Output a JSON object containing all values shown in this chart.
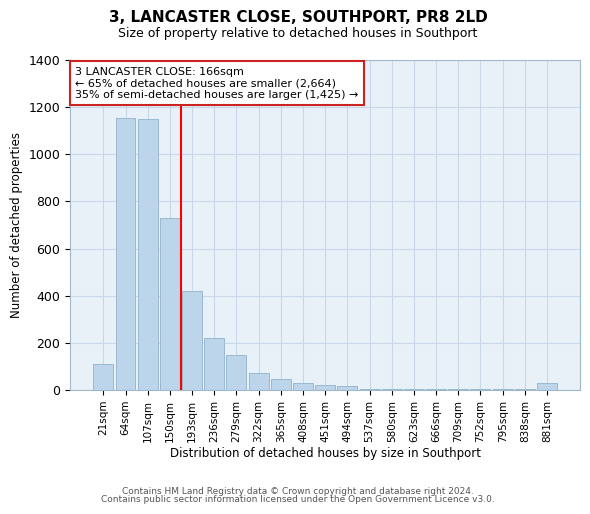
{
  "title": "3, LANCASTER CLOSE, SOUTHPORT, PR8 2LD",
  "subtitle": "Size of property relative to detached houses in Southport",
  "xlabel": "Distribution of detached houses by size in Southport",
  "ylabel": "Number of detached properties",
  "bar_labels": [
    "21sqm",
    "64sqm",
    "107sqm",
    "150sqm",
    "193sqm",
    "236sqm",
    "279sqm",
    "322sqm",
    "365sqm",
    "408sqm",
    "451sqm",
    "494sqm",
    "537sqm",
    "580sqm",
    "623sqm",
    "666sqm",
    "709sqm",
    "752sqm",
    "795sqm",
    "838sqm",
    "881sqm"
  ],
  "bar_values": [
    110,
    1155,
    1150,
    730,
    420,
    220,
    150,
    72,
    48,
    30,
    20,
    15,
    5,
    5,
    5,
    5,
    5,
    5,
    5,
    5,
    30
  ],
  "bar_color": "#bdd5ea",
  "red_line_x": 3.5,
  "ylim": [
    0,
    1400
  ],
  "yticks": [
    0,
    200,
    400,
    600,
    800,
    1000,
    1200,
    1400
  ],
  "annotation_title": "3 LANCASTER CLOSE: 166sqm",
  "annotation_line1": "← 65% of detached houses are smaller (2,664)",
  "annotation_line2": "35% of semi-detached houses are larger (1,425) →",
  "footer1": "Contains HM Land Registry data © Crown copyright and database right 2024.",
  "footer2": "Contains public sector information licensed under the Open Government Licence v3.0.",
  "background_color": "#ffffff",
  "grid_color": "#c8d8e8",
  "spine_color": "#a0b8cc"
}
